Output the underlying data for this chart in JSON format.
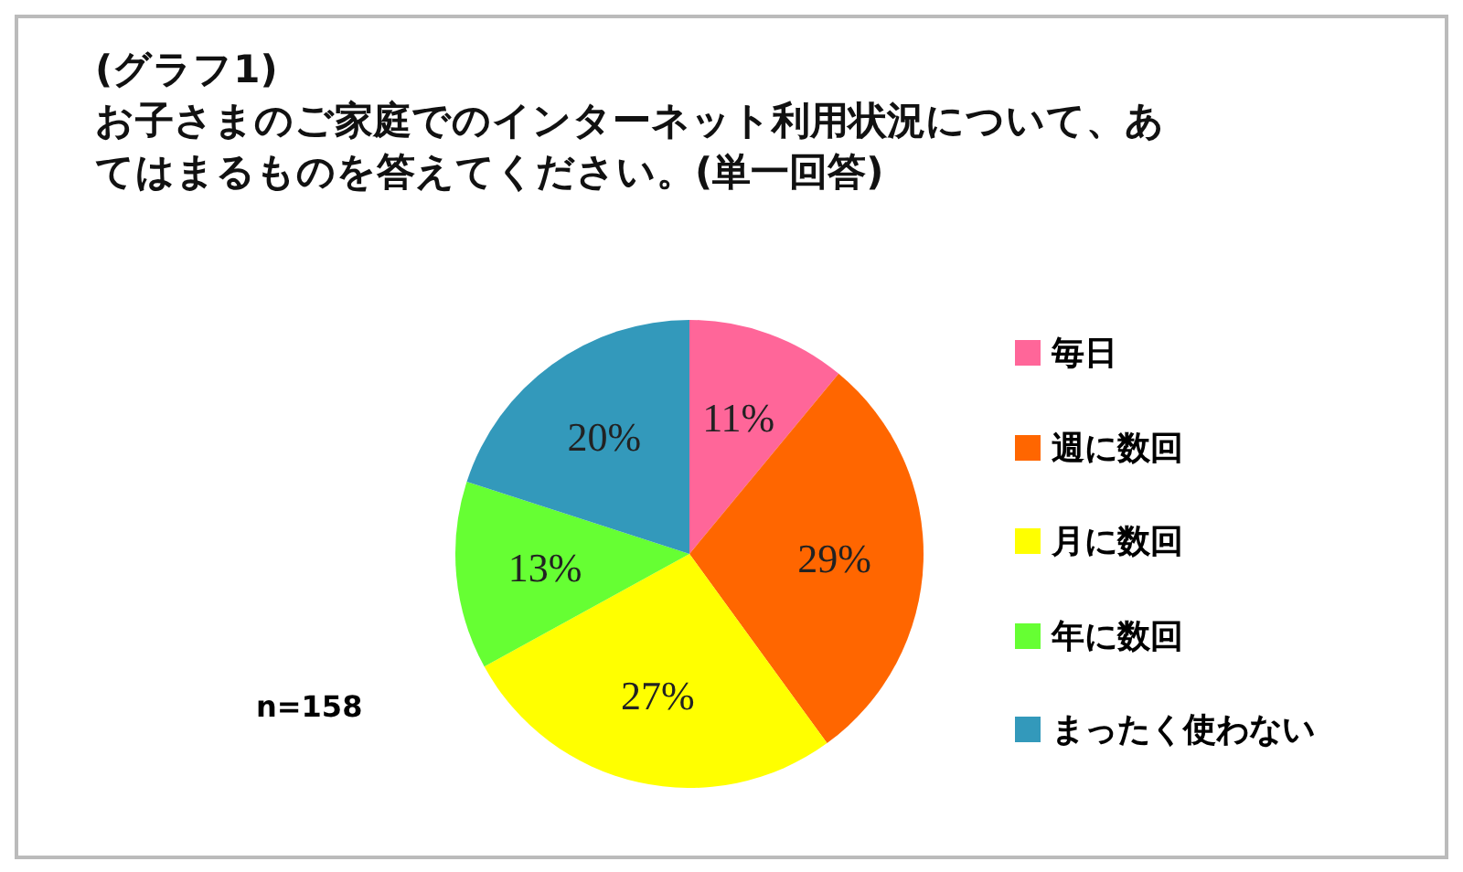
{
  "chart_data": {
    "type": "pie",
    "title": "(グラフ1)",
    "subtitle": "お子さまのご家庭でのインターネット利用状況について、あてはまるものを答えてください。(単一回答)",
    "categories": [
      "毎日",
      "週に数回",
      "月に数回",
      "年に数回",
      "まったく使わない"
    ],
    "values": [
      11,
      29,
      27,
      13,
      20
    ],
    "colors": [
      "#ff6699",
      "#ff6600",
      "#ffff00",
      "#66ff33",
      "#3399bb"
    ],
    "value_labels": [
      "11%",
      "29%",
      "27%",
      "13%",
      "20%"
    ],
    "legend": "right",
    "annotations": [
      "n=158"
    ]
  }
}
